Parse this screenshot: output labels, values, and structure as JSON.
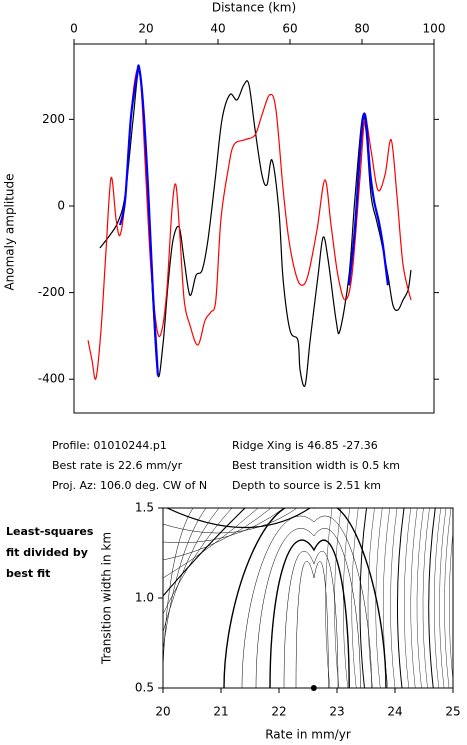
{
  "chart_data": [
    {
      "type": "line",
      "xlabel": "Distance (km)",
      "ylabel": "Anomaly amplitude",
      "xlim": [
        0,
        100
      ],
      "xticks": [
        0,
        20,
        40,
        60,
        80,
        100
      ],
      "ylim": [
        -478,
        374
      ],
      "yticks": [
        -400,
        -200,
        0,
        200
      ],
      "series": [
        {
          "color": "#000000",
          "x": [
            7.2,
            10,
            12.2,
            14.2,
            16.4,
            18,
            19.2,
            20.6,
            21.9,
            23.3,
            24.7,
            26.1,
            27.5,
            29.2,
            30.6,
            32.2,
            33.9,
            35.6,
            37.2,
            39.2,
            41.1,
            43.3,
            45.3,
            47.2,
            48.6,
            50.3,
            52.2,
            53.6,
            55,
            56.9,
            58.1,
            60,
            62.2,
            62.8,
            64.2,
            65.6,
            67.8,
            69.2,
            70.6,
            72.8,
            73.9,
            76.4,
            78,
            80,
            81.1,
            82.5,
            84,
            85.3,
            87.2,
            88.6,
            90,
            91.4,
            92.8,
            93.6
          ],
          "values": [
            -97,
            -67,
            -37,
            25,
            199,
            314,
            222,
            14,
            -217,
            -391,
            -321,
            -183,
            -79,
            -49,
            -125,
            -206,
            -160,
            -148,
            -79,
            60,
            199,
            257,
            245,
            280,
            280,
            176,
            72,
            49,
            106,
            -9,
            -171,
            -287,
            -310,
            -379,
            -414,
            -310,
            -160,
            -72,
            -125,
            -264,
            -287,
            -160,
            14,
            199,
            176,
            25,
            -32,
            -79,
            -160,
            -229,
            -240,
            -217,
            -194,
            -148
          ]
        },
        {
          "color": "#ff0000",
          "x": [
            3.9,
            5,
            6.1,
            7.5,
            8.9,
            10.3,
            11.7,
            12.8,
            14.2,
            15.8,
            17.5,
            18.6,
            20,
            21.4,
            23.1,
            24.4,
            25.8,
            27.2,
            28.3,
            29.4,
            30.6,
            32.2,
            34.4,
            36.4,
            38,
            39.4,
            40.8,
            42.8,
            44.4,
            47.5,
            50.3,
            52.2,
            54.4,
            56.1,
            58.1,
            59.7,
            61.7,
            63.3,
            65,
            67.5,
            69.7,
            71.4,
            73.3,
            75.3,
            77.2,
            79.4,
            80.8,
            82.5,
            84.4,
            86.4,
            88.1,
            89.7,
            91.4,
            93.6
          ],
          "values": [
            -310,
            -356,
            -398,
            -287,
            -102,
            65,
            -32,
            -67,
            14,
            210,
            314,
            280,
            60,
            -148,
            -287,
            -287,
            -194,
            -9,
            49,
            -67,
            -217,
            -275,
            -321,
            -264,
            -245,
            -217,
            -32,
            83,
            141,
            153,
            164,
            210,
            257,
            222,
            37,
            -79,
            -160,
            -183,
            -160,
            -55,
            60,
            -44,
            -160,
            -217,
            -160,
            60,
            199,
            129,
            37,
            72,
            153,
            25,
            -136,
            -217
          ]
        },
        {
          "color": "#0000ff",
          "x": [
            12.8,
            14.2,
            15.8,
            17.5,
            18.1,
            19.2,
            20.6,
            21.9,
            23.3,
            null,
            76.4,
            78,
            79.4,
            80.3,
            81.1,
            82.2,
            83.3,
            84.7,
            85.8,
            87.2
          ],
          "values": [
            -44,
            14,
            203,
            303,
            319,
            233,
            37,
            -194,
            -391,
            null,
            -183,
            -55,
            118,
            203,
            199,
            83,
            14,
            -37,
            -90,
            -183
          ]
        }
      ]
    },
    {
      "type": "contour",
      "xlabel": "Rate in mm/yr",
      "ylabel": "Transition width in km",
      "xlim": [
        20,
        25
      ],
      "xticks": [
        20,
        21,
        22,
        23,
        24,
        25
      ],
      "ylim": [
        0.5,
        1.5
      ],
      "yticks": [
        0.5,
        {
          "value": 1,
          "label": "1.0"
        },
        1.5
      ],
      "x": [
        22.6
      ],
      "values": [
        0.5
      ],
      "color": "#000000"
    }
  ],
  "info": {
    "left": [
      "Profile: 01010244.p1",
      "Best rate is 22.6 mm/yr",
      "Proj. Az: 106.0 deg. CW of N"
    ],
    "right": [
      "Ridge Xing is 46.85 -27.36",
      "Best transition width is 0.5 km",
      "Depth to source is   2.51 km"
    ]
  },
  "note": {
    "lines": [
      "Least-squares",
      "fit divided by",
      "best fit"
    ]
  }
}
